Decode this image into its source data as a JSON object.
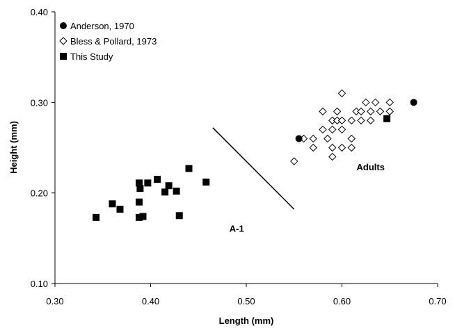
{
  "chart_data": {
    "type": "scatter",
    "title": "",
    "xlabel": "Length (mm)",
    "ylabel": "Height (mm)",
    "xlim": [
      0.3,
      0.7
    ],
    "ylim": [
      0.1,
      0.4
    ],
    "xticks": [
      "0.30",
      "0.40",
      "0.50",
      "0.60",
      "0.70"
    ],
    "yticks": [
      "0.10",
      "0.20",
      "0.30",
      "0.40"
    ],
    "grid": false,
    "legend_position": "top-left",
    "series": [
      {
        "name": "Anderson, 1970",
        "marker": "filled-circle",
        "color": "#000000",
        "points": [
          [
            0.555,
            0.26
          ],
          [
            0.675,
            0.3
          ]
        ]
      },
      {
        "name": "Bless & Pollard, 1973",
        "marker": "open-diamond",
        "color": "#000000",
        "points": [
          [
            0.55,
            0.235
          ],
          [
            0.56,
            0.26
          ],
          [
            0.57,
            0.26
          ],
          [
            0.57,
            0.25
          ],
          [
            0.58,
            0.29
          ],
          [
            0.58,
            0.27
          ],
          [
            0.585,
            0.26
          ],
          [
            0.59,
            0.28
          ],
          [
            0.59,
            0.27
          ],
          [
            0.59,
            0.25
          ],
          [
            0.59,
            0.24
          ],
          [
            0.595,
            0.29
          ],
          [
            0.595,
            0.28
          ],
          [
            0.6,
            0.31
          ],
          [
            0.6,
            0.28
          ],
          [
            0.6,
            0.27
          ],
          [
            0.6,
            0.25
          ],
          [
            0.61,
            0.28
          ],
          [
            0.61,
            0.26
          ],
          [
            0.61,
            0.25
          ],
          [
            0.615,
            0.29
          ],
          [
            0.62,
            0.29
          ],
          [
            0.62,
            0.28
          ],
          [
            0.625,
            0.3
          ],
          [
            0.63,
            0.29
          ],
          [
            0.63,
            0.28
          ],
          [
            0.635,
            0.3
          ],
          [
            0.64,
            0.29
          ],
          [
            0.65,
            0.3
          ],
          [
            0.65,
            0.29
          ]
        ]
      },
      {
        "name": "This Study",
        "marker": "filled-square",
        "color": "#000000",
        "points": [
          [
            0.343,
            0.173
          ],
          [
            0.36,
            0.188
          ],
          [
            0.368,
            0.182
          ],
          [
            0.388,
            0.211
          ],
          [
            0.389,
            0.205
          ],
          [
            0.388,
            0.19
          ],
          [
            0.388,
            0.173
          ],
          [
            0.392,
            0.174
          ],
          [
            0.397,
            0.211
          ],
          [
            0.407,
            0.215
          ],
          [
            0.415,
            0.201
          ],
          [
            0.419,
            0.208
          ],
          [
            0.427,
            0.202
          ],
          [
            0.43,
            0.175
          ],
          [
            0.44,
            0.227
          ],
          [
            0.458,
            0.212
          ],
          [
            0.647,
            0.282
          ]
        ]
      }
    ],
    "divider_line": [
      [
        0.465,
        0.272
      ],
      [
        0.55,
        0.182
      ]
    ],
    "annotations": [
      {
        "text": "A-1",
        "x": 0.49,
        "y": 0.157
      },
      {
        "text": "Adults",
        "x": 0.63,
        "y": 0.225
      }
    ]
  }
}
